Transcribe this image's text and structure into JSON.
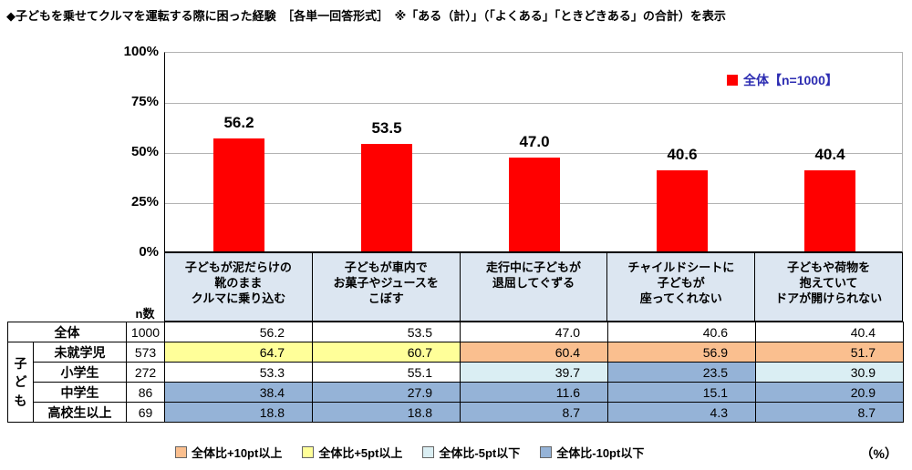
{
  "title": "◆子どもを乗せてクルマを運転する際に困った経験　［各単一回答形式］　※「ある（計）」（「よくある」「ときどきある」の合計）を表示",
  "chart_data": {
    "type": "bar",
    "series_name": "全体",
    "legend_label": "全体【n=1000】",
    "legend_position": "top-right",
    "categories": [
      "子どもが泥だらけの\n靴のまま\nクルマに乗り込む",
      "子どもが車内で\nお菓子やジュースを\nこぼす",
      "走行中に子どもが\n退屈してぐずる",
      "チャイルドシートに\n子どもが\n座ってくれない",
      "子どもや荷物を\n抱えていて\nドアが開けられない"
    ],
    "values": [
      56.2,
      53.5,
      47.0,
      40.6,
      40.4
    ],
    "ylim": [
      0,
      100
    ],
    "yticks": [
      "100%",
      "75%",
      "50%",
      "25%",
      "0%"
    ],
    "grid": true,
    "bar_color": "#FF0000"
  },
  "table": {
    "n_header": "n数",
    "group_label": "子ども",
    "rows": [
      {
        "label": "全体",
        "n": "1000",
        "values": [
          "56.2",
          "53.5",
          "47.0",
          "40.6",
          "40.4"
        ],
        "colors": [
          "none",
          "none",
          "none",
          "none",
          "none"
        ]
      },
      {
        "label": "未就学児",
        "n": "573",
        "values": [
          "64.7",
          "60.7",
          "60.4",
          "56.9",
          "51.7"
        ],
        "colors": [
          "yellow",
          "yellow",
          "orange",
          "orange",
          "orange"
        ]
      },
      {
        "label": "小学生",
        "n": "272",
        "values": [
          "53.3",
          "55.1",
          "39.7",
          "23.5",
          "30.9"
        ],
        "colors": [
          "none",
          "none",
          "cyan",
          "blue",
          "cyan"
        ]
      },
      {
        "label": "中学生",
        "n": "86",
        "values": [
          "38.4",
          "27.9",
          "11.6",
          "15.1",
          "20.9"
        ],
        "colors": [
          "blue",
          "blue",
          "blue",
          "blue",
          "blue"
        ]
      },
      {
        "label": "高校生以上",
        "n": "69",
        "values": [
          "18.8",
          "18.8",
          "8.7",
          "4.3",
          "8.7"
        ],
        "colors": [
          "blue",
          "blue",
          "blue",
          "blue",
          "blue"
        ]
      }
    ]
  },
  "palette": {
    "orange": "#FABF8F",
    "yellow": "#FFFF99",
    "cyan": "#DAEEF3",
    "blue": "#95B3D7",
    "none": "#FFFFFF"
  },
  "legend_bottom": {
    "items": [
      {
        "label": "全体比+10pt以上",
        "color_key": "orange"
      },
      {
        "label": "全体比+5pt以上",
        "color_key": "yellow"
      },
      {
        "label": "全体比-5pt以下",
        "color_key": "cyan"
      },
      {
        "label": "全体比-10pt以下",
        "color_key": "blue"
      }
    ],
    "unit": "（%）"
  }
}
